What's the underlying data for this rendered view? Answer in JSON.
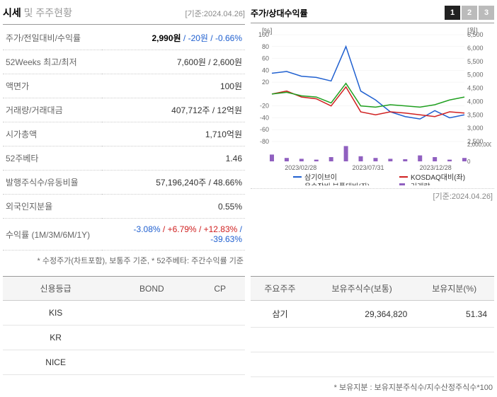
{
  "dateRef": "[기준:2024.04.26]",
  "section1": {
    "title_bold": "시세",
    "title_light": " 및 주주현황",
    "rows": [
      {
        "label": "주가/전일대비/수익률",
        "value": "2,990원",
        "extra1": " / -20원",
        "extra2": " / -0.66%",
        "bold": true,
        "c1": "blue",
        "c2": "blue"
      },
      {
        "label": "52Weeks 최고/최저",
        "value": "7,600원 / 2,600원"
      },
      {
        "label": "액면가",
        "value": "100원"
      },
      {
        "label": "거래량/거래대금",
        "value": "407,712주 / 12억원"
      },
      {
        "label": "시가총액",
        "value": "1,710억원"
      },
      {
        "label": "52주베타",
        "value": "1.46"
      },
      {
        "label": "발행주식수/유동비율",
        "value": "57,196,240주 / 48.66%"
      },
      {
        "label": "외국인지분율",
        "value": "0.55%"
      },
      {
        "label": "수익률 (1M/3M/6M/1Y)",
        "r1": "-3.08%",
        "r2": " / +6.79%",
        "r3": " / +12.83%",
        "r4": " / -39.63%"
      }
    ],
    "footnote": "* 수정주가(차트포함), 보통주 기준, * 52주베타: 주간수익률 기준"
  },
  "chart": {
    "title": "주가/상대수익률",
    "tabs": [
      "1",
      "2",
      "3"
    ],
    "activeTab": 0,
    "yLeftLabel": "[%]",
    "yRightLabel": "[원]",
    "yLeftMin": -80,
    "yLeftMax": 100,
    "yLeftStep": 20,
    "yRightMin": 2500,
    "yRightMax": 6500,
    "yRightStep": 500,
    "xLabels": [
      "2023/02/28",
      "2023/07/31",
      "2023/12/28"
    ],
    "series": [
      {
        "name": "삼기이브이",
        "color": "#2060d0",
        "data": [
          35,
          38,
          30,
          28,
          22,
          80,
          5,
          -10,
          -30,
          -38,
          -42,
          -28,
          -40,
          -35
        ]
      },
      {
        "name": "KOSDAQ대비(좌)",
        "color": "#d02020",
        "data": [
          0,
          5,
          -5,
          -8,
          -20,
          12,
          -30,
          -35,
          -30,
          -32,
          -35,
          -38,
          -30,
          -32
        ]
      },
      {
        "name": "운송장비,부품대비(좌)",
        "color": "#20a020",
        "data": [
          0,
          3,
          -3,
          -5,
          -15,
          18,
          -20,
          -22,
          -18,
          -20,
          -22,
          -18,
          -10,
          -5
        ]
      }
    ],
    "volume": {
      "name": "거래량",
      "color": "#9060c0",
      "data": [
        800000,
        400000,
        300000,
        200000,
        500000,
        1800000,
        600000,
        400000,
        300000,
        250000,
        700000,
        500000,
        200000,
        400000
      ],
      "max": 2000000
    }
  },
  "creditTable": {
    "headers": [
      "신용등급",
      "BOND",
      "CP"
    ],
    "rows": [
      [
        "KIS",
        "",
        ""
      ],
      [
        "KR",
        "",
        ""
      ],
      [
        "NICE",
        "",
        ""
      ]
    ]
  },
  "shareholderTable": {
    "headers": [
      "주요주주",
      "보유주식수(보통)",
      "보유지분(%)"
    ],
    "rows": [
      [
        "삼기",
        "29,364,820",
        "51.34"
      ]
    ],
    "footnote": "* 보유지분 : 보유지분주식수/지수산정주식수*100"
  }
}
